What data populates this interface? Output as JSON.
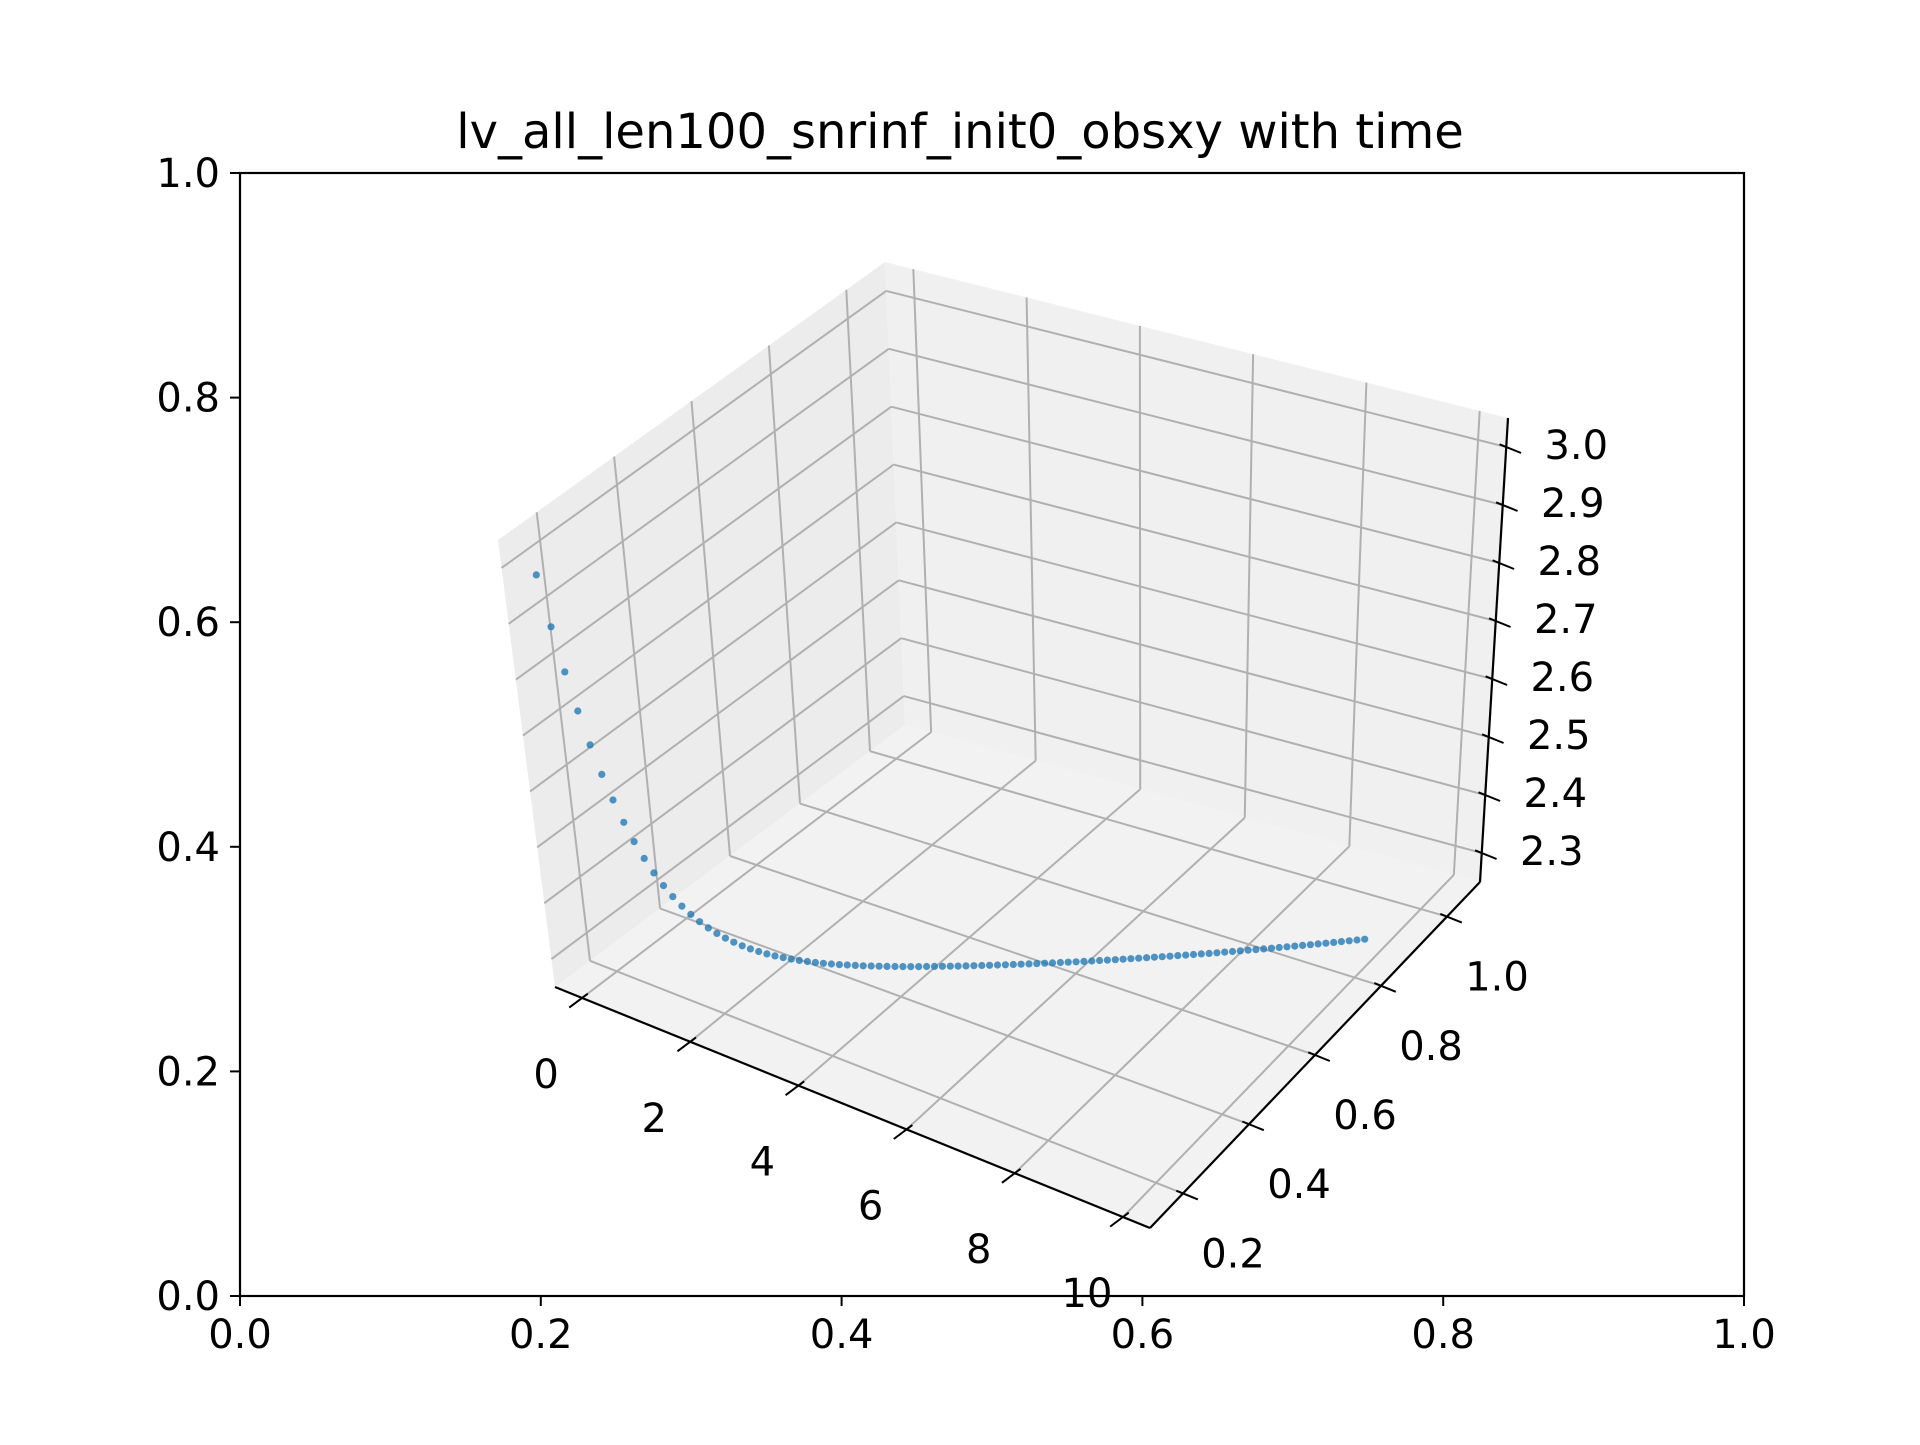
{
  "chart_data": {
    "type": "scatter",
    "title": "lv_all_len100_snrinf_init0_obsxy with time",
    "outer_axes": {
      "xlim": [
        0.0,
        1.0
      ],
      "ylim": [
        0.0,
        1.0
      ],
      "xticks": [
        "0.0",
        "0.2",
        "0.4",
        "0.6",
        "0.8",
        "1.0"
      ],
      "yticks": [
        "0.0",
        "0.2",
        "0.4",
        "0.6",
        "0.8",
        "1.0"
      ]
    },
    "axes3d": {
      "xlim": [
        -0.5,
        10.5
      ],
      "ylim": [
        0.1,
        1.1
      ],
      "zlim": [
        2.25,
        3.05
      ],
      "xticks": [
        0,
        2,
        4,
        6,
        8,
        10
      ],
      "yticks": [
        0.2,
        0.4,
        0.6,
        0.8,
        1.0
      ],
      "zticks": [
        2.3,
        2.4,
        2.5,
        2.6,
        2.7,
        2.8,
        2.9,
        3.0
      ],
      "xtick_labels": [
        "0",
        "2",
        "4",
        "6",
        "8",
        "10"
      ],
      "ytick_labels": [
        "0.2",
        "0.4",
        "0.6",
        "0.8",
        "1.0"
      ],
      "ztick_labels": [
        "2.3",
        "2.4",
        "2.5",
        "2.6",
        "2.7",
        "2.8",
        "2.9",
        "3.0"
      ],
      "grid": true,
      "pane_color": "#f2f2f2",
      "grid_color": "#b0b0b0"
    },
    "series": [
      {
        "color": "#1f77b4",
        "marker": "dot",
        "points": {
          "t_start": 0.0,
          "t_end": 10.0,
          "count": 100,
          "x": "t",
          "y_start": 0.12,
          "y_end": 0.83,
          "z_start": 3.0,
          "z_end": 2.3,
          "z_curve": "steep decay toward 2.3 over the first steps"
        }
      }
    ]
  }
}
